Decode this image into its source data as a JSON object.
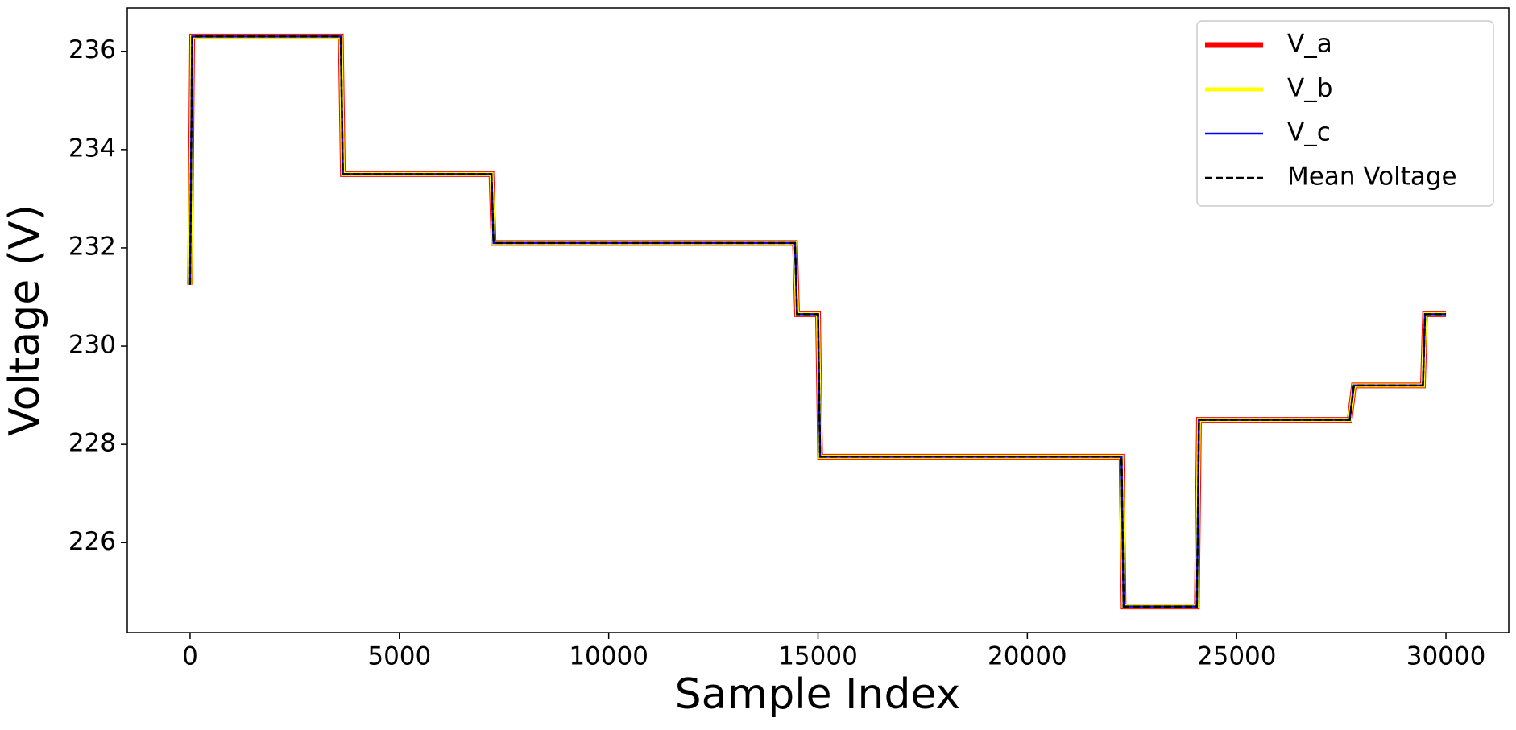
{
  "chart_data": {
    "type": "line",
    "xlabel": "Sample Index",
    "ylabel": "Voltage (V)",
    "x": [
      0,
      50,
      3600,
      3650,
      7200,
      7250,
      14450,
      14500,
      15000,
      15050,
      22250,
      22300,
      24050,
      24100,
      27700,
      27800,
      29450,
      29500,
      30000
    ],
    "series": [
      {
        "name": "V_a",
        "color": "#ff0000",
        "linewidth": 7,
        "values": [
          231.25,
          236.3,
          236.3,
          233.5,
          233.5,
          232.1,
          232.1,
          230.65,
          230.65,
          227.75,
          227.75,
          224.7,
          224.7,
          228.5,
          228.5,
          229.2,
          229.2,
          230.65,
          230.65
        ]
      },
      {
        "name": "V_b",
        "color": "#ffff00",
        "linewidth": 5,
        "values": [
          231.25,
          236.3,
          236.3,
          233.5,
          233.5,
          232.1,
          232.1,
          230.65,
          230.65,
          227.75,
          227.75,
          224.7,
          224.7,
          228.5,
          228.5,
          229.2,
          229.2,
          230.65,
          230.65
        ]
      },
      {
        "name": "V_c",
        "color": "#0000ff",
        "linewidth": 2.5,
        "values": [
          231.25,
          236.3,
          236.3,
          233.5,
          233.5,
          232.1,
          232.1,
          230.65,
          230.65,
          227.75,
          227.75,
          224.7,
          224.7,
          228.5,
          228.5,
          229.2,
          229.2,
          230.65,
          230.65
        ]
      },
      {
        "name": "Mean Voltage",
        "color": "#000000",
        "linewidth": 2.5,
        "linestyle": "dashed",
        "values": [
          231.25,
          236.3,
          236.3,
          233.5,
          233.5,
          232.1,
          232.1,
          230.65,
          230.65,
          227.75,
          227.75,
          224.7,
          224.7,
          228.5,
          228.5,
          229.2,
          229.2,
          230.65,
          230.65
        ]
      }
    ],
    "xlim": [
      -1500,
      31500
    ],
    "xticks": [
      0,
      5000,
      10000,
      15000,
      20000,
      25000,
      30000
    ],
    "ylim": [
      224.17,
      236.88
    ],
    "yticks": [
      226,
      228,
      230,
      232,
      234,
      236
    ],
    "grid": false,
    "legend": "upper right"
  }
}
